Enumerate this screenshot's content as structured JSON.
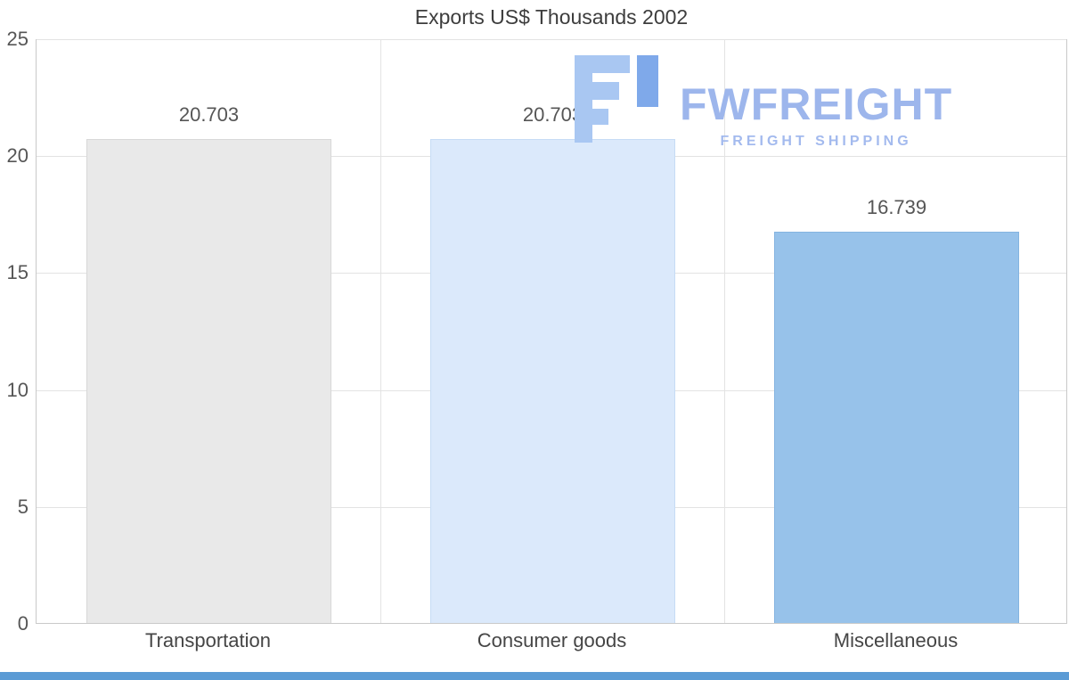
{
  "chart_data": {
    "type": "bar",
    "title": "Exports US$ Thousands 2002",
    "categories": [
      "Transportation",
      "Consumer goods",
      "Miscellaneous"
    ],
    "values": [
      20.703,
      20.703,
      16.739
    ],
    "labels": [
      "20.703",
      "20.703",
      "16.739"
    ],
    "bar_colors": [
      "#e9e9e9",
      "#dbe9fb",
      "#97c2ea"
    ],
    "bar_border_colors": [
      "#d8d8d8",
      "#c6dcf5",
      "#85b4e0"
    ],
    "xlabel": "",
    "ylabel": "",
    "ylim": [
      0,
      25
    ],
    "yticks": [
      0,
      5,
      10,
      15,
      20,
      25
    ],
    "grid": true,
    "legend": false
  },
  "watermark": {
    "name": "FWFREIGHT",
    "subtitle": "FREIGHT SHIPPING"
  },
  "colors": {
    "accent_bar": "#5b9bd5",
    "watermark_text": "#9db6ec",
    "watermark_sub": "#a3baee",
    "logo_light_blue": "#a9c7f2",
    "logo_dark_blue": "#7fa9ea",
    "grid": "#e3e3e3"
  }
}
